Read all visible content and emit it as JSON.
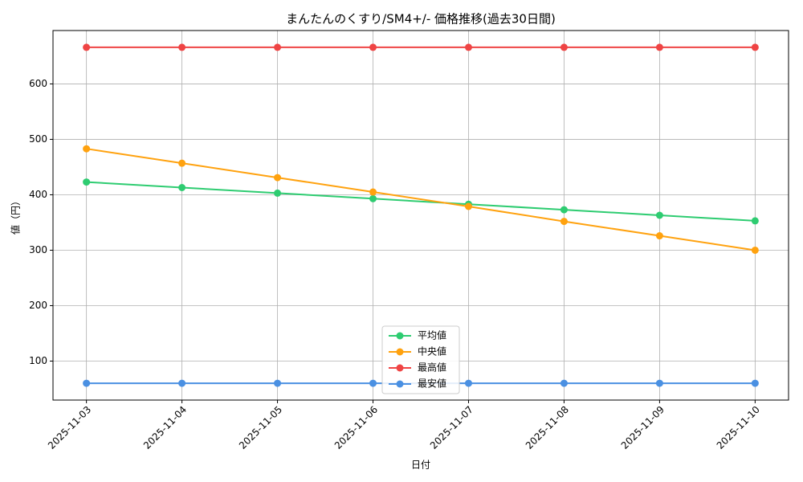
{
  "chart_data": {
    "type": "line",
    "title": "まんたんのくすり/SM4+/- 価格推移(過去30日間)",
    "x_label": "日付",
    "y_label": "値（円）",
    "categories": [
      "2025-11-03",
      "2025-11-04",
      "2025-11-05",
      "2025-11-06",
      "2025-11-07",
      "2025-11-08",
      "2025-11-09",
      "2025-11-10"
    ],
    "series": [
      {
        "name": "平均値",
        "color": "#2ecc71",
        "values": [
          423,
          413,
          403,
          393,
          383,
          373,
          363,
          353
        ]
      },
      {
        "name": "中央値",
        "color": "#ffa20f",
        "values": [
          483,
          457,
          431,
          405,
          379,
          352,
          326,
          300
        ]
      },
      {
        "name": "最高値",
        "color": "#ef4444",
        "values": [
          666,
          666,
          666,
          666,
          666,
          666,
          666,
          666
        ]
      },
      {
        "name": "最安値",
        "color": "#4a90e2",
        "values": [
          60,
          60,
          60,
          60,
          60,
          60,
          60,
          60
        ]
      }
    ],
    "ylim": [
      29.7,
      696.3
    ],
    "yticks": [
      100,
      200,
      300,
      400,
      500,
      600
    ],
    "grid": true,
    "legend": "lower center"
  }
}
